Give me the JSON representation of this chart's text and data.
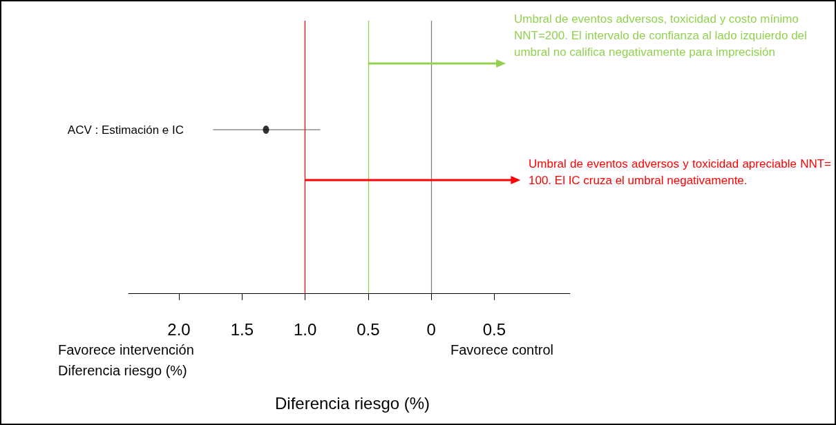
{
  "chart_data": {
    "type": "scatter",
    "orientation": "horizontal",
    "xlabel": "Diferencia riesgo (%)",
    "categories": [
      null,
      null,
      "ACV : Estimación e IC",
      null,
      null,
      null
    ],
    "values": [
      null,
      null,
      1.31,
      null,
      null,
      null
    ],
    "errors": [
      null,
      null,
      [
        0.88,
        1.73
      ],
      null,
      null,
      null
    ],
    "color": "#000000",
    "marker": "circle",
    "xlim": [
      2.4,
      -1.1
    ],
    "xticks": [
      {
        "value": 2,
        "label": "2.0"
      },
      1.5,
      {
        "value": 1,
        "label": "1.0"
      },
      0.5,
      0,
      {
        "value": -0.5,
        "label": "0.5"
      }
    ],
    "ref_lines": [
      {
        "axis": "x",
        "value": 1,
        "color": "#ff0000"
      },
      {
        "axis": "x",
        "value": 0.5,
        "color": "#92d050"
      },
      {
        "axis": "x",
        "value": 0,
        "color": "#7f7f7f"
      }
    ],
    "annotations": [
      "Favorece intervención\nDiferencia riesgo (%)",
      "Favorece control",
      "Umbral de eventos adversos, toxicidad y costo mínimo\nNNT=200. El intervalo de confianza al lado izquierdo  del umbral no califica negativamente para imprecisión",
      "Umbral de eventos adversos y toxicidad apreciable NNT= 100. El IC cruza el umbral negativamente."
    ],
    "grid": false
  }
}
